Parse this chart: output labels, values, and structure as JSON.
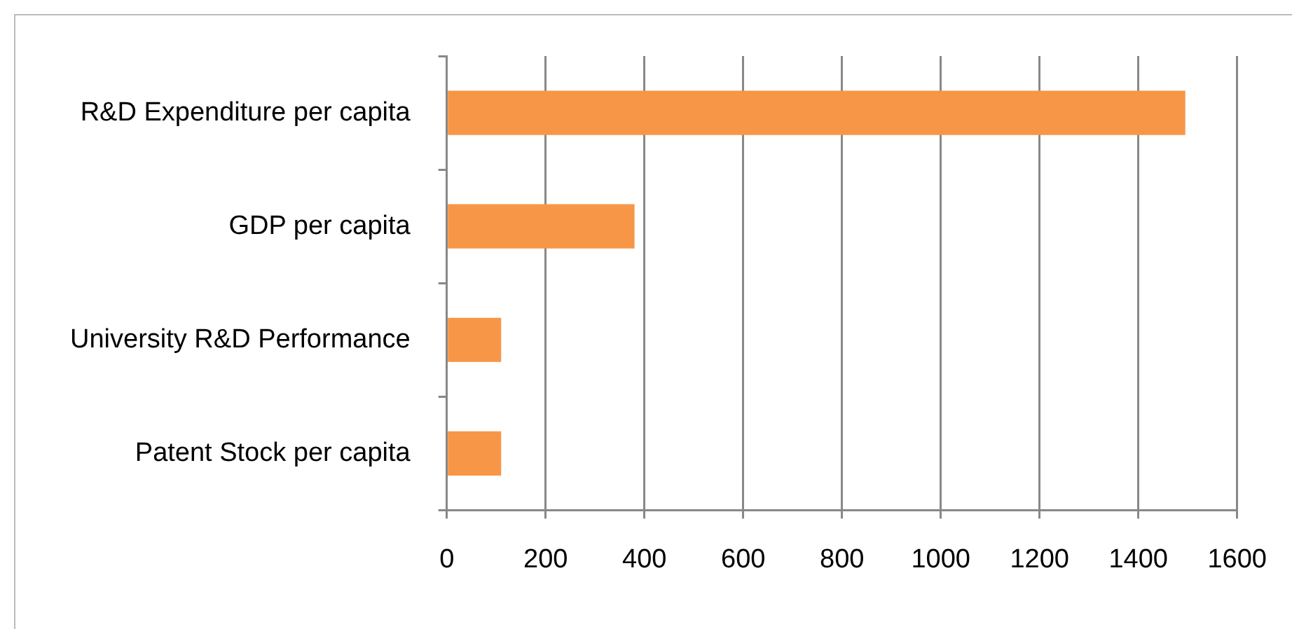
{
  "chart_data": {
    "type": "bar",
    "orientation": "horizontal",
    "categories": [
      "R&D Expenditure per capita",
      "GDP per capita",
      "University R&D Performance",
      "Patent Stock per capita"
    ],
    "values": [
      1495,
      380,
      110,
      110
    ],
    "color": "#f79646",
    "xlim": [
      0,
      1600
    ],
    "xticks": [
      0,
      200,
      400,
      600,
      800,
      1000,
      1200,
      1400,
      1600
    ],
    "grid": "x",
    "legend": false
  }
}
